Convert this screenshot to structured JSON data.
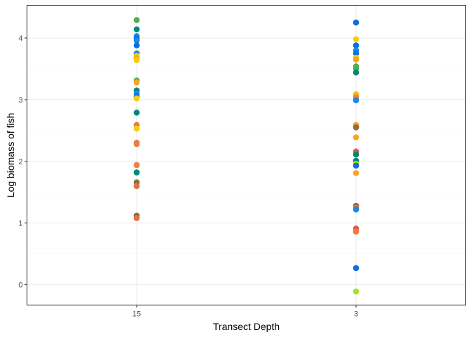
{
  "chart_data": {
    "type": "scatter",
    "title": "",
    "xlabel": "Transect Depth",
    "ylabel": "Log biomass of fish",
    "categories": [
      "15",
      "3"
    ],
    "ylim": [
      -0.33,
      4.53
    ],
    "yticks": [
      "0",
      "1",
      "2",
      "3",
      "4"
    ],
    "grid": true,
    "legend": "none",
    "points": [
      {
        "x": "15",
        "y": 4.29,
        "color": "#4caf50"
      },
      {
        "x": "15",
        "y": 4.14,
        "color": "#00897b"
      },
      {
        "x": "15",
        "y": 4.03,
        "color": "#1e88e5"
      },
      {
        "x": "15",
        "y": 3.99,
        "color": "#0b6fdc"
      },
      {
        "x": "15",
        "y": 3.96,
        "color": "#1e88e5"
      },
      {
        "x": "15",
        "y": 3.88,
        "color": "#0b6fdc"
      },
      {
        "x": "15",
        "y": 3.75,
        "color": "#1e88e5"
      },
      {
        "x": "15",
        "y": 3.71,
        "color": "#f4d00c"
      },
      {
        "x": "15",
        "y": 3.67,
        "color": "#f5a623"
      },
      {
        "x": "15",
        "y": 3.64,
        "color": "#f4d00c"
      },
      {
        "x": "15",
        "y": 3.31,
        "color": "#4caf50"
      },
      {
        "x": "15",
        "y": 3.28,
        "color": "#f5a623"
      },
      {
        "x": "15",
        "y": 3.15,
        "color": "#00897b"
      },
      {
        "x": "15",
        "y": 3.1,
        "color": "#1e88e5"
      },
      {
        "x": "15",
        "y": 3.05,
        "color": "#0b6fdc"
      },
      {
        "x": "15",
        "y": 3.02,
        "color": "#f4d00c"
      },
      {
        "x": "15",
        "y": 2.79,
        "color": "#00897b"
      },
      {
        "x": "15",
        "y": 2.59,
        "color": "#ef7b45"
      },
      {
        "x": "15",
        "y": 2.53,
        "color": "#f4d00c"
      },
      {
        "x": "15",
        "y": 2.3,
        "color": "#e07040"
      },
      {
        "x": "15",
        "y": 2.28,
        "color": "#ef7b45"
      },
      {
        "x": "15",
        "y": 1.94,
        "color": "#ef7b45"
      },
      {
        "x": "15",
        "y": 1.82,
        "color": "#00897b"
      },
      {
        "x": "15",
        "y": 1.66,
        "color": "#8d6e3f"
      },
      {
        "x": "15",
        "y": 1.6,
        "color": "#e07040"
      },
      {
        "x": "15",
        "y": 1.12,
        "color": "#8d6e3f"
      },
      {
        "x": "15",
        "y": 1.08,
        "color": "#e07040"
      },
      {
        "x": "3",
        "y": 4.25,
        "color": "#0b6fdc"
      },
      {
        "x": "3",
        "y": 3.98,
        "color": "#f4d00c"
      },
      {
        "x": "3",
        "y": 3.88,
        "color": "#0b6fdc"
      },
      {
        "x": "3",
        "y": 3.8,
        "color": "#1e88e5"
      },
      {
        "x": "3",
        "y": 3.75,
        "color": "#0b6fdc"
      },
      {
        "x": "3",
        "y": 3.68,
        "color": "#f4d00c"
      },
      {
        "x": "3",
        "y": 3.65,
        "color": "#f5a623"
      },
      {
        "x": "3",
        "y": 3.54,
        "color": "#4caf50"
      },
      {
        "x": "3",
        "y": 3.5,
        "color": "#4caf50"
      },
      {
        "x": "3",
        "y": 3.44,
        "color": "#00897b"
      },
      {
        "x": "3",
        "y": 3.09,
        "color": "#f4d00c"
      },
      {
        "x": "3",
        "y": 3.06,
        "color": "#f5a623"
      },
      {
        "x": "3",
        "y": 3.03,
        "color": "#ef7b45"
      },
      {
        "x": "3",
        "y": 2.99,
        "color": "#1e88e5"
      },
      {
        "x": "3",
        "y": 2.59,
        "color": "#f5a623"
      },
      {
        "x": "3",
        "y": 2.55,
        "color": "#8d6e3f"
      },
      {
        "x": "3",
        "y": 2.39,
        "color": "#f5a623"
      },
      {
        "x": "3",
        "y": 2.16,
        "color": "#e05a4a"
      },
      {
        "x": "3",
        "y": 2.11,
        "color": "#00897b"
      },
      {
        "x": "3",
        "y": 2.01,
        "color": "#00897b"
      },
      {
        "x": "3",
        "y": 1.96,
        "color": "#c6d200"
      },
      {
        "x": "3",
        "y": 1.93,
        "color": "#0b6fdc"
      },
      {
        "x": "3",
        "y": 1.81,
        "color": "#f5a623"
      },
      {
        "x": "3",
        "y": 1.28,
        "color": "#8d6e3f"
      },
      {
        "x": "3",
        "y": 1.25,
        "color": "#e07040"
      },
      {
        "x": "3",
        "y": 1.22,
        "color": "#1e88e5"
      },
      {
        "x": "3",
        "y": 0.91,
        "color": "#e05a4a"
      },
      {
        "x": "3",
        "y": 0.86,
        "color": "#ef7b45"
      },
      {
        "x": "3",
        "y": 0.27,
        "color": "#0b6fdc"
      },
      {
        "x": "3",
        "y": -0.11,
        "color": "#a8e02a"
      }
    ]
  }
}
